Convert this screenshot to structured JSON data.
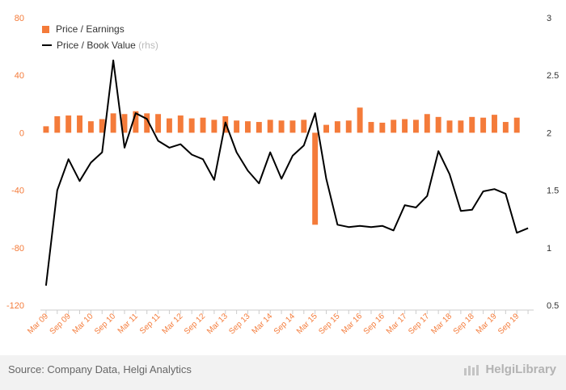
{
  "chart_data": {
    "type": "bar-line",
    "categories": [
      "Mar 09",
      "Jun 09",
      "Sep 09",
      "Dec 09",
      "Mar 10",
      "Jun 10",
      "Sep 10",
      "Dec 10",
      "Mar 11",
      "Jun 11",
      "Sep 11",
      "Dec 11",
      "Mar 12",
      "Jun 12",
      "Sep 12",
      "Dec 12",
      "Mar 13",
      "Jun 13",
      "Sep 13",
      "Dec 13",
      "Mar 14",
      "Jun 14",
      "Sep 14",
      "Dec 14",
      "Mar 15",
      "Jun 15",
      "Sep 15",
      "Dec 15",
      "Mar 16",
      "Jun 16",
      "Sep 16",
      "Dec 16",
      "Mar 17",
      "Jun 17",
      "Sep 17",
      "Dec 17",
      "Mar 18",
      "Jun 18",
      "Sep 18",
      "Dec 18",
      "Mar 19",
      "Jun 19",
      "Sep 19",
      "Dec 19"
    ],
    "x_tick_labels": [
      "Mar 09",
      "Sep 09",
      "Mar 10",
      "Sep 10",
      "Mar 11",
      "Sep 11",
      "Mar 12",
      "Sep 12",
      "Mar 13",
      "Sep 13",
      "Mar 14",
      "Sep 14",
      "Mar 15",
      "Sep 15",
      "Mar 16",
      "Sep 16",
      "Mar 17",
      "Sep 17",
      "Mar 18",
      "Sep 18",
      "Mar 19",
      "Sep 19"
    ],
    "series": [
      {
        "name": "Price / Earnings",
        "kind": "bar",
        "axis": "left",
        "color": "#f47b3a",
        "values": [
          4.5,
          11.5,
          12,
          12,
          8,
          9.5,
          13.5,
          13,
          15,
          13.5,
          13,
          10,
          12,
          10,
          10.5,
          9,
          11.5,
          8.5,
          8,
          7.5,
          9,
          8.5,
          8.5,
          9,
          -64,
          5.5,
          8,
          8.5,
          17.5,
          7.5,
          7,
          9,
          9.5,
          9,
          13,
          11,
          8.5,
          8.5,
          11,
          10.5,
          12.5,
          7.5,
          10.5,
          null
        ]
      },
      {
        "name": "Price / Book Value",
        "name_suffix": "(rhs)",
        "kind": "line",
        "axis": "right",
        "color": "#000000",
        "values": [
          0.67,
          1.5,
          1.77,
          1.58,
          1.74,
          1.83,
          2.63,
          1.87,
          2.17,
          2.12,
          1.93,
          1.87,
          1.9,
          1.81,
          1.77,
          1.59,
          2.09,
          1.83,
          1.67,
          1.56,
          1.83,
          1.6,
          1.8,
          1.89,
          2.17,
          1.6,
          1.2,
          1.18,
          1.19,
          1.18,
          1.19,
          1.15,
          1.37,
          1.35,
          1.45,
          1.84,
          1.64,
          1.32,
          1.33,
          1.49,
          1.51,
          1.47,
          1.13,
          1.17
        ]
      }
    ],
    "y_left": {
      "ticks": [
        "80",
        "40",
        "0",
        "-40",
        "-80",
        "-120"
      ],
      "ylim": [
        -120,
        80
      ]
    },
    "y_right": {
      "ticks": [
        "3",
        "2.5",
        "2",
        "1.5",
        "1",
        "0.5"
      ],
      "ylim": [
        0.5,
        3
      ]
    },
    "legend_placement": "top-left",
    "grid": false
  },
  "footer": {
    "source": "Source: Company Data, Helgi Analytics",
    "brand": "HelgiLibrary"
  },
  "colors": {
    "accent": "#f47b3a",
    "left_tick": "#f47b3a",
    "right_tick": "#333333",
    "footer_bg": "#f2f2f2"
  }
}
